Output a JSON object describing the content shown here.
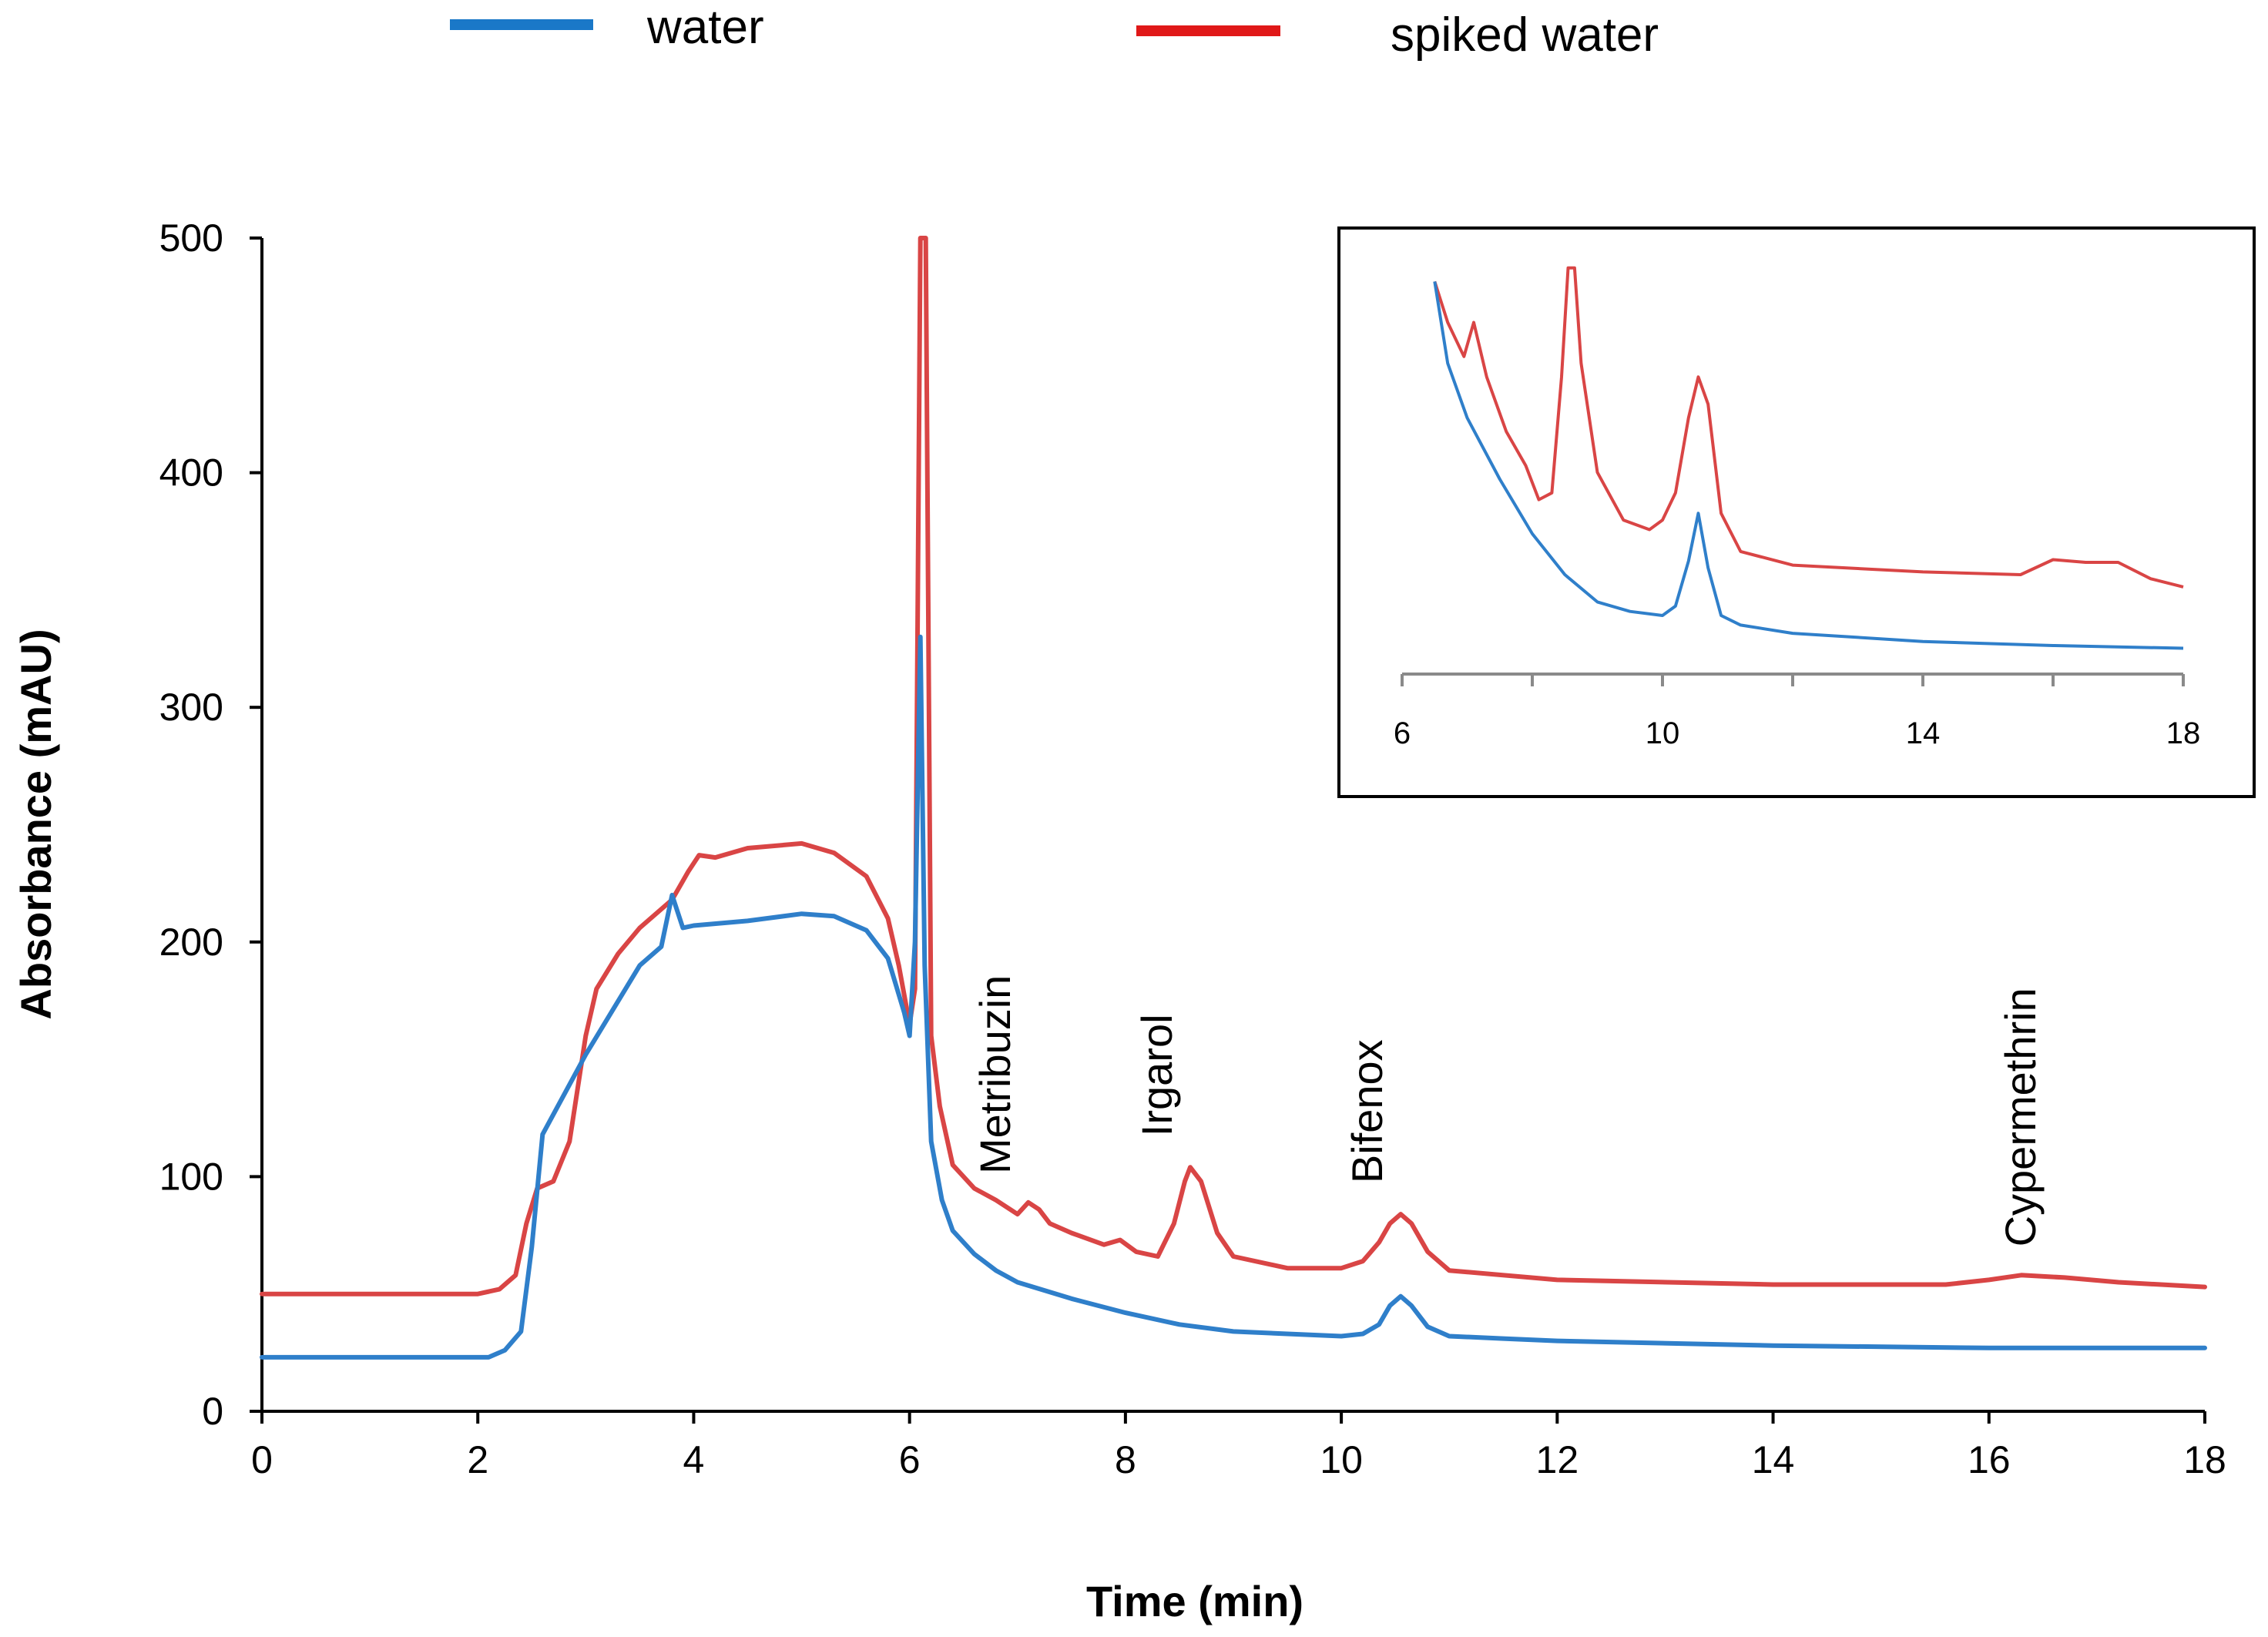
{
  "chart_data": {
    "type": "line",
    "xlabel": "Time (min)",
    "ylabel": "Absorbance (mAU)",
    "xlim": [
      0,
      18
    ],
    "ylim": [
      0,
      500
    ],
    "x_ticks": [
      "0",
      "2",
      "4",
      "6",
      "8",
      "10",
      "12",
      "14",
      "16",
      "18"
    ],
    "y_ticks": [
      "0",
      "100",
      "200",
      "300",
      "400",
      "500"
    ],
    "legend": [
      {
        "label": "water",
        "color": "#1a78c8"
      },
      {
        "label": "spiked water",
        "color": "#e01818"
      }
    ],
    "series": [
      {
        "name": "water",
        "color": "#2f7fca",
        "points": [
          [
            0,
            23
          ],
          [
            1,
            23
          ],
          [
            1.9,
            23
          ],
          [
            2.1,
            23
          ],
          [
            2.25,
            26
          ],
          [
            2.4,
            34
          ],
          [
            2.5,
            70
          ],
          [
            2.6,
            118
          ],
          [
            3,
            152
          ],
          [
            3.5,
            190
          ],
          [
            3.7,
            198
          ],
          [
            3.8,
            220
          ],
          [
            3.9,
            206
          ],
          [
            4,
            207
          ],
          [
            4.5,
            209
          ],
          [
            5,
            212
          ],
          [
            5.3,
            211
          ],
          [
            5.6,
            205
          ],
          [
            5.8,
            193
          ],
          [
            5.95,
            170
          ],
          [
            6.0,
            160
          ],
          [
            6.05,
            200
          ],
          [
            6.1,
            330
          ],
          [
            6.14,
            190
          ],
          [
            6.2,
            115
          ],
          [
            6.3,
            90
          ],
          [
            6.4,
            77
          ],
          [
            6.6,
            67
          ],
          [
            6.8,
            60
          ],
          [
            7,
            55
          ],
          [
            7.5,
            48
          ],
          [
            8,
            42
          ],
          [
            8.5,
            37
          ],
          [
            9,
            34
          ],
          [
            9.5,
            33
          ],
          [
            10,
            32
          ],
          [
            10.2,
            33
          ],
          [
            10.35,
            37
          ],
          [
            10.45,
            45
          ],
          [
            10.55,
            49
          ],
          [
            10.65,
            45
          ],
          [
            10.8,
            36
          ],
          [
            11,
            32
          ],
          [
            11.5,
            31
          ],
          [
            12,
            30
          ],
          [
            14,
            28
          ],
          [
            16,
            27
          ],
          [
            18,
            27
          ]
        ]
      },
      {
        "name": "spiked water",
        "color": "#d94545",
        "points": [
          [
            0,
            50
          ],
          [
            1,
            50
          ],
          [
            2,
            50
          ],
          [
            2.2,
            52
          ],
          [
            2.35,
            58
          ],
          [
            2.45,
            80
          ],
          [
            2.55,
            95
          ],
          [
            2.7,
            98
          ],
          [
            2.85,
            115
          ],
          [
            3,
            160
          ],
          [
            3.1,
            180
          ],
          [
            3.3,
            195
          ],
          [
            3.5,
            206
          ],
          [
            3.8,
            218
          ],
          [
            3.95,
            230
          ],
          [
            4.05,
            237
          ],
          [
            4.2,
            236
          ],
          [
            4.5,
            240
          ],
          [
            5,
            242
          ],
          [
            5.3,
            238
          ],
          [
            5.6,
            228
          ],
          [
            5.8,
            210
          ],
          [
            5.9,
            190
          ],
          [
            6.0,
            165
          ],
          [
            6.05,
            180
          ],
          [
            6.1,
            500
          ],
          [
            6.15,
            500
          ],
          [
            6.2,
            160
          ],
          [
            6.28,
            130
          ],
          [
            6.4,
            105
          ],
          [
            6.6,
            95
          ],
          [
            6.8,
            90
          ],
          [
            7.0,
            84
          ],
          [
            7.1,
            89
          ],
          [
            7.2,
            86
          ],
          [
            7.3,
            80
          ],
          [
            7.5,
            76
          ],
          [
            7.8,
            71
          ],
          [
            7.95,
            73
          ],
          [
            8.1,
            68
          ],
          [
            8.3,
            66
          ],
          [
            8.45,
            80
          ],
          [
            8.55,
            98
          ],
          [
            8.6,
            104
          ],
          [
            8.7,
            98
          ],
          [
            8.85,
            76
          ],
          [
            9.0,
            66
          ],
          [
            9.5,
            61
          ],
          [
            10.0,
            61
          ],
          [
            10.2,
            64
          ],
          [
            10.35,
            72
          ],
          [
            10.45,
            80
          ],
          [
            10.55,
            84
          ],
          [
            10.65,
            80
          ],
          [
            10.8,
            68
          ],
          [
            11,
            60
          ],
          [
            12,
            56
          ],
          [
            14,
            54
          ],
          [
            15.6,
            54
          ],
          [
            16,
            56
          ],
          [
            16.3,
            58
          ],
          [
            16.7,
            57
          ],
          [
            17.2,
            55
          ],
          [
            18,
            53
          ]
        ]
      }
    ],
    "annotations": [
      {
        "text": "Metribuzin",
        "x": 7.1,
        "y": 88
      },
      {
        "text": "Irgarol",
        "x": 8.6,
        "y": 104
      },
      {
        "text": "Bifenox",
        "x": 10.55,
        "y": 84
      },
      {
        "text": "Cypermethrin",
        "x": 16.6,
        "y": 57
      }
    ],
    "inset": {
      "xlim": [
        6,
        18
      ],
      "x_ticks": [
        "6",
        "10",
        "14",
        "18"
      ],
      "series": [
        {
          "name": "water",
          "color": "#2f7fca",
          "points": [
            [
              6.5,
              500
            ],
            [
              6.7,
              440
            ],
            [
              7,
              400
            ],
            [
              7.5,
              355
            ],
            [
              8,
              315
            ],
            [
              8.5,
              285
            ],
            [
              9,
              265
            ],
            [
              9.5,
              258
            ],
            [
              10,
              255
            ],
            [
              10.2,
              262
            ],
            [
              10.4,
              295
            ],
            [
              10.55,
              330
            ],
            [
              10.7,
              290
            ],
            [
              10.9,
              255
            ],
            [
              11.2,
              248
            ],
            [
              12,
              242
            ],
            [
              14,
              236
            ],
            [
              16,
              233
            ],
            [
              18,
              231
            ]
          ]
        },
        {
          "name": "spiked water",
          "color": "#d94545",
          "points": [
            [
              6.5,
              500
            ],
            [
              6.7,
              470
            ],
            [
              6.95,
              445
            ],
            [
              7.1,
              470
            ],
            [
              7.3,
              430
            ],
            [
              7.6,
              390
            ],
            [
              7.9,
              365
            ],
            [
              8.1,
              340
            ],
            [
              8.3,
              345
            ],
            [
              8.45,
              430
            ],
            [
              8.55,
              510
            ],
            [
              8.65,
              510
            ],
            [
              8.75,
              440
            ],
            [
              9.0,
              360
            ],
            [
              9.4,
              325
            ],
            [
              9.8,
              318
            ],
            [
              10.0,
              325
            ],
            [
              10.2,
              345
            ],
            [
              10.4,
              400
            ],
            [
              10.55,
              430
            ],
            [
              10.7,
              410
            ],
            [
              10.9,
              330
            ],
            [
              11.2,
              302
            ],
            [
              12,
              292
            ],
            [
              14,
              287
            ],
            [
              15.5,
              285
            ],
            [
              16,
              296
            ],
            [
              16.5,
              294
            ],
            [
              17,
              294
            ],
            [
              17.5,
              282
            ],
            [
              18,
              276
            ]
          ]
        }
      ]
    }
  }
}
